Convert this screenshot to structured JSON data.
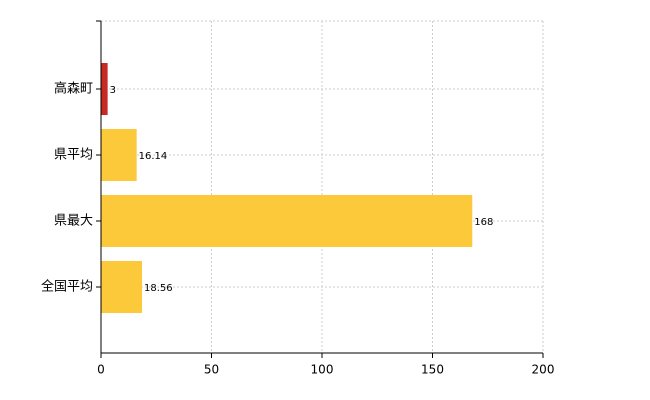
{
  "chart_data": {
    "type": "bar",
    "orientation": "horizontal",
    "categories": [
      "高森町",
      "県平均",
      "県最大",
      "全国平均"
    ],
    "values": [
      3,
      16.14,
      168,
      18.56
    ],
    "colors": [
      "#c62a22",
      "#fcc93a",
      "#fcc93a",
      "#fcc93a"
    ],
    "xlim": [
      0,
      200
    ],
    "xticks": [
      0,
      50,
      100,
      150,
      200
    ],
    "grid": true
  }
}
